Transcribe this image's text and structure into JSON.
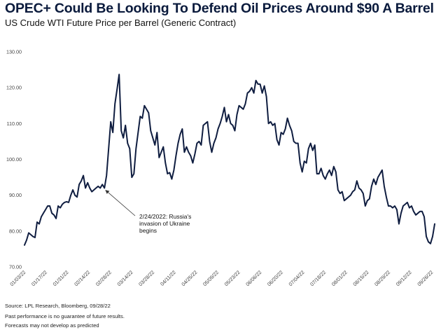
{
  "header": {
    "title": "OPEC+ Could Be Looking To Defend Oil Prices Around $90 A Barrel",
    "subtitle": "US Crude WTI Future Price per Barrel (Generic Contract)"
  },
  "footer": {
    "source": "Source: LPL Research,  Bloomberg, 09/28/22",
    "disclaimer1": "Past performance is no guarantee of future results.",
    "disclaimer2": "Forecasts may not develop as predicted"
  },
  "chart_data": {
    "type": "line",
    "title": "OPEC+ Could Be Looking To Defend Oil Prices Around $90 A Barrel",
    "subtitle": "US Crude WTI Future Price per Barrel (Generic Contract)",
    "xlabel": "",
    "ylabel": "",
    "ylim": [
      70,
      130
    ],
    "yticks": [
      70,
      80,
      90,
      100,
      110,
      120,
      130
    ],
    "ytick_labels": [
      "70.00",
      "80.00",
      "90.00",
      "100.00",
      "110.00",
      "120.00",
      "130.00"
    ],
    "xtick_labels": [
      "01/03/22",
      "01/17/22",
      "01/31/22",
      "02/14/22",
      "02/28/22",
      "03/14/22",
      "03/28/22",
      "04/11/22",
      "04/25/22",
      "05/09/22",
      "05/23/22",
      "06/06/22",
      "06/20/22",
      "07/04/22",
      "07/18/22",
      "08/01/22",
      "08/15/22",
      "08/29/22",
      "09/12/22",
      "09/26/22"
    ],
    "grid": false,
    "line_color": "#0f1d40",
    "series": [
      {
        "name": "WTI Crude Futures",
        "values": [
          76.1,
          77.5,
          79.5,
          79.0,
          78.5,
          78.2,
          82.5,
          82.0,
          84.0,
          85.0,
          86.0,
          87.0,
          87.0,
          85.0,
          84.5,
          83.5,
          87.0,
          86.5,
          87.5,
          88.0,
          88.2,
          88.0,
          90.0,
          91.5,
          90.0,
          89.5,
          93.0,
          94.0,
          95.5,
          92.0,
          93.5,
          92.0,
          91.0,
          91.5,
          92.0,
          92.5,
          92.0,
          93.0,
          92.0,
          95.5,
          103.0,
          110.5,
          107.5,
          115.5,
          119.5,
          123.7,
          108.0,
          106.0,
          109.5,
          104.5,
          103.0,
          95.0,
          96.0,
          103.0,
          107.5,
          112.0,
          111.5,
          115.0,
          114.0,
          113.0,
          108.0,
          106.0,
          104.0,
          107.5,
          100.5,
          102.0,
          103.5,
          99.0,
          96.0,
          96.3,
          94.5,
          97.0,
          101.0,
          104.5,
          107.0,
          108.5,
          102.0,
          103.5,
          102.0,
          101.0,
          99.0,
          101.5,
          104.5,
          105.0,
          104.0,
          109.5,
          110.0,
          110.5,
          105.0,
          102.0,
          104.5,
          106.0,
          108.5,
          110.0,
          112.0,
          114.5,
          110.5,
          112.5,
          110.0,
          109.5,
          108.0,
          112.5,
          115.0,
          114.5,
          114.0,
          115.5,
          118.5,
          119.0,
          120.0,
          118.5,
          122.0,
          121.0,
          121.0,
          118.5,
          120.5,
          117.5,
          110.0,
          110.5,
          109.5,
          110.0,
          105.5,
          104.0,
          107.5,
          107.0,
          108.5,
          111.5,
          109.5,
          108.0,
          105.0,
          104.5,
          104.5,
          99.0,
          96.5,
          99.5,
          99.0,
          103.0,
          104.5,
          102.5,
          104.0,
          96.0,
          96.0,
          97.5,
          95.5,
          94.5,
          96.0,
          97.0,
          95.5,
          98.0,
          96.5,
          91.5,
          90.5,
          91.0,
          88.5,
          89.0,
          89.5,
          90.0,
          91.0,
          91.5,
          94.0,
          92.0,
          91.5,
          90.5,
          87.0,
          88.5,
          89.0,
          92.5,
          94.5,
          93.0,
          95.0,
          96.0,
          97.0,
          92.5,
          89.5,
          87.0,
          87.0,
          86.5,
          87.0,
          86.0,
          82.0,
          85.0,
          87.0,
          87.5,
          88.0,
          86.5,
          87.0,
          85.5,
          84.5,
          85.0,
          85.5,
          85.5,
          84.0,
          78.5,
          77.0,
          76.5,
          78.5,
          82.0
        ]
      }
    ],
    "annotation": {
      "lines": [
        "2/24/2022: Russia's",
        "invasion of Ukraine",
        "begins"
      ],
      "date": "02/24/22",
      "value": 92.0
    }
  }
}
